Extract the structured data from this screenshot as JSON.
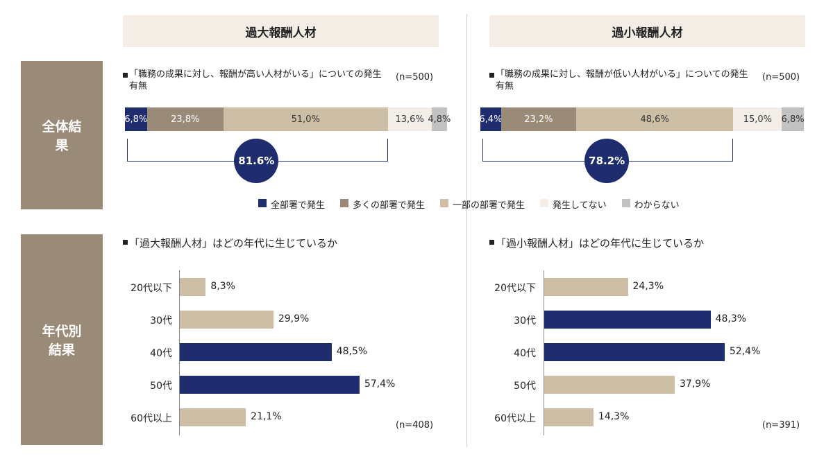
{
  "columns": [
    "過大報酬人材",
    "過小報酬人材"
  ],
  "sections": [
    "全体結果",
    "年代別結果"
  ],
  "legend": {
    "names": [
      "全部署で発生",
      "多くの部署で発生",
      "一部の部署で発生",
      "発生してない",
      "わからない"
    ],
    "colors": [
      "#1f2d6e",
      "#9a8a78",
      "#cdbfa5",
      "#f3eee8",
      "#c2c2c2"
    ]
  },
  "chart_data": [
    {
      "type": "stacked_bar",
      "title": "「職務の成果に対し、報酬が高い人材がいる」についての発生有無",
      "note": "(n=500)",
      "values": [
        6.8,
        23.8,
        51.0,
        13.6,
        4.8
      ],
      "value_labels": [
        "6,8%",
        "23,8%",
        "51,0%",
        "13,6%",
        "4,8%"
      ],
      "xlim": [
        0,
        100
      ],
      "highlight_value": 81.6,
      "highlight_label": "81.6%"
    },
    {
      "type": "stacked_bar",
      "title": "「職務の成果に対し、報酬が低い人材がいる」についての発生有無",
      "note": "(n=500)",
      "values": [
        6.4,
        23.2,
        48.6,
        15.0,
        6.8
      ],
      "value_labels": [
        "6,4%",
        "23,2%",
        "48,6%",
        "15,0%",
        "6,8%"
      ],
      "xlim": [
        0,
        100
      ],
      "highlight_value": 78.2,
      "highlight_label": "78.2%"
    },
    {
      "type": "hbar",
      "title": "「過大報酬人材」はどの年代に生じているか",
      "note": "(n=408)",
      "categories": [
        "20代以下",
        "30代",
        "40代",
        "50代",
        "60代以上"
      ],
      "values": [
        8.3,
        29.9,
        48.5,
        57.4,
        21.1
      ],
      "value_labels": [
        "8,3%",
        "29,9%",
        "48,5%",
        "57,4%",
        "21,1%"
      ],
      "colors": [
        "#cdbfa5",
        "#cdbfa5",
        "#1f2d6e",
        "#1f2d6e",
        "#cdbfa5"
      ],
      "xlim": [
        0,
        100
      ]
    },
    {
      "type": "hbar",
      "title": "「過小報酬人材」はどの年代に生じているか",
      "note": "(n=391)",
      "categories": [
        "20代以下",
        "30代",
        "40代",
        "50代",
        "60代以上"
      ],
      "values": [
        24.3,
        48.3,
        52.4,
        37.9,
        14.3
      ],
      "value_labels": [
        "24,3%",
        "48,3%",
        "52,4%",
        "37,9%",
        "14,3%"
      ],
      "colors": [
        "#cdbfa5",
        "#1f2d6e",
        "#1f2d6e",
        "#cdbfa5",
        "#cdbfa5"
      ],
      "xlim": [
        0,
        100
      ]
    }
  ]
}
